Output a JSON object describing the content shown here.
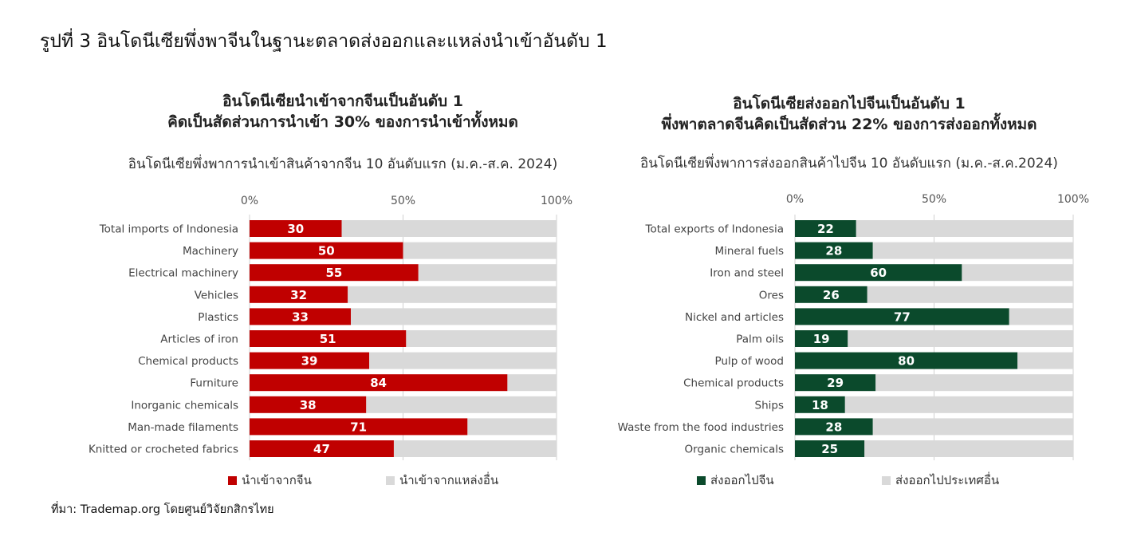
{
  "figure_title": "รูปที่ 3 อินโดนีเซียพึ่งพาจีนในฐานะตลาดส่งออกและแหล่งนำเข้าอันดับ 1",
  "source": "ที่มา: Trademap.org โดยศูนย์วิจัยกสิกรไทย",
  "colors": {
    "import": "#c00000",
    "export": "#0b4a2c",
    "rest": "#d9d9d9"
  },
  "chart_data": [
    {
      "type": "bar",
      "orientation": "horizontal",
      "stacked": true,
      "title_lines": [
        "อินโดนีเซียนำเข้าจากจีนเป็นอันดับ 1",
        "คิดเป็นสัดส่วนการนำเข้า 30% ของการนำเข้าทั้งหมด"
      ],
      "subtitle": "อินโดนีเซียพึ่งพาการนำเข้าสินค้าจากจีน 10 อันดับแรก (ม.ค.-ส.ค. 2024)",
      "xlim": [
        0,
        100
      ],
      "ticks": [
        "0%",
        "50%",
        "100%"
      ],
      "categories": [
        "Total imports of Indonesia",
        "Machinery",
        "Electrical machinery",
        "Vehicles",
        "Plastics",
        "Articles of iron",
        "Chemical products",
        "Furniture",
        "Inorganic chemicals",
        "Man-made filaments",
        "Knitted or crocheted fabrics"
      ],
      "series": [
        {
          "name": "นำเข้าจากจีน",
          "values": [
            30,
            50,
            55,
            32,
            33,
            51,
            39,
            84,
            38,
            71,
            47
          ]
        },
        {
          "name": "นำเข้าจากแหล่งอื่น",
          "values": [
            70,
            50,
            45,
            68,
            67,
            49,
            61,
            16,
            62,
            29,
            53
          ]
        }
      ],
      "legend_position": "bottom"
    },
    {
      "type": "bar",
      "orientation": "horizontal",
      "stacked": true,
      "title_lines": [
        "อินโดนีเซียส่งออกไปจีนเป็นอันดับ 1",
        "พึ่งพาตลาดจีนคิดเป็นสัดส่วน 22% ของการส่งออกทั้งหมด"
      ],
      "subtitle": "อินโดนีเซียพึ่งพาการส่งออกสินค้าไปจีน 10 อันดับแรก (ม.ค.-ส.ค.2024)",
      "xlim": [
        0,
        100
      ],
      "ticks": [
        "0%",
        "50%",
        "100%"
      ],
      "categories": [
        "Total exports of Indonesia",
        "Mineral fuels",
        "Iron and steel",
        "Ores",
        "Nickel and articles",
        "Palm oils",
        "Pulp of wood",
        "Chemical products",
        "Ships",
        "Waste from the food industries",
        "Organic chemicals"
      ],
      "series": [
        {
          "name": "ส่งออกไปจีน",
          "values": [
            22,
            28,
            60,
            26,
            77,
            19,
            80,
            29,
            18,
            28,
            25
          ]
        },
        {
          "name": "ส่งออกไปประเทศอื่น",
          "values": [
            78,
            72,
            40,
            74,
            23,
            81,
            20,
            71,
            82,
            72,
            75
          ]
        }
      ],
      "legend_position": "bottom"
    }
  ]
}
